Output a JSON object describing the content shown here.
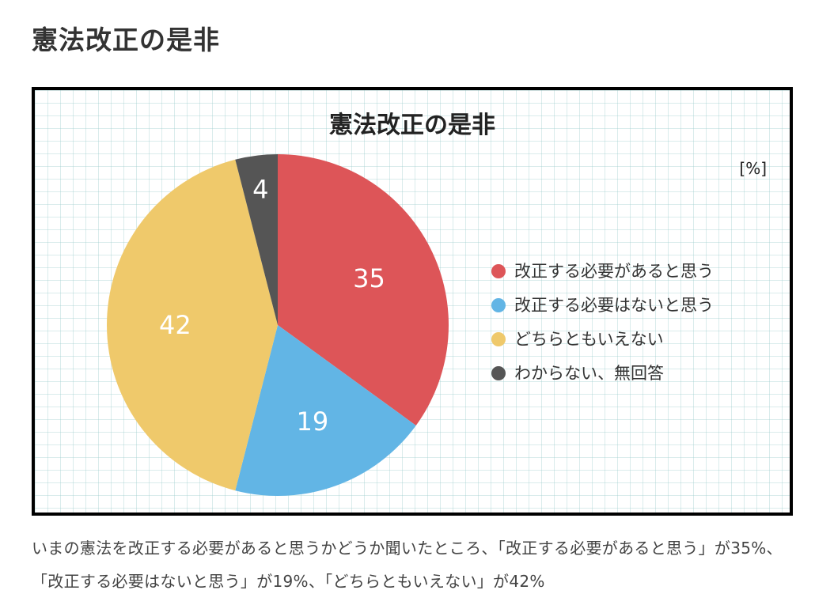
{
  "page": {
    "title": "憲法改正の是非",
    "caption": "いまの憲法を改正する必要があると思うかどうか聞いたところ、「改正する必要があると思う」が35%、「改正する必要はないと思う」が19%、「どちらともいえない」が42%"
  },
  "chart_data": {
    "type": "pie",
    "title": "憲法改正の是非",
    "unit_label": "[%]",
    "categories": [
      "改正する必要があると思う",
      "改正する必要はないと思う",
      "どちらともいえない",
      "わからない、無回答"
    ],
    "values": [
      35,
      19,
      42,
      4
    ],
    "colors": [
      "#dd5558",
      "#62b5e5",
      "#efc96b",
      "#555555"
    ],
    "start": "12 o'clock",
    "direction": "clockwise",
    "legend_position": "right",
    "grid": true
  }
}
